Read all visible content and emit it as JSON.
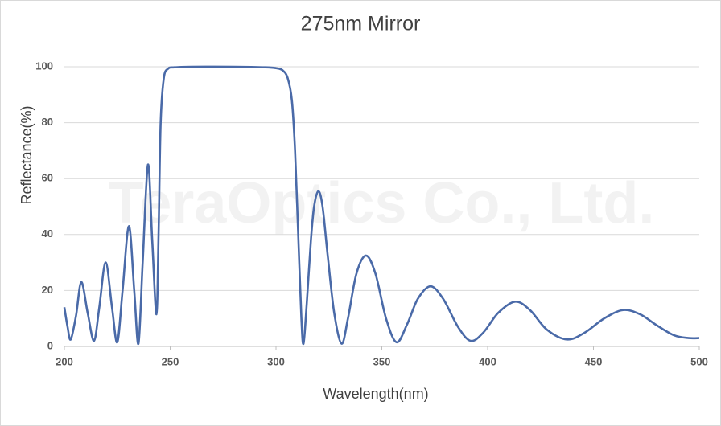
{
  "chart_data": {
    "type": "line",
    "title": "275nm Mirror",
    "watermark": "TeraOptics Co., Ltd.",
    "x_label": "Wavelength(nm)",
    "y_label": "Reflectance(%)",
    "xlim": [
      200,
      500
    ],
    "ylim": [
      0,
      100
    ],
    "xticks": [
      200,
      250,
      300,
      350,
      400,
      450,
      500
    ],
    "yticks": [
      0,
      20,
      40,
      60,
      80,
      100
    ],
    "grid": true,
    "series": [
      {
        "name": "Reflectance",
        "color": "#4a6aa8",
        "x": [
          200,
          201.5,
          203,
          205.5,
          208,
          211,
          214,
          216.5,
          219.5,
          222.5,
          225,
          227.5,
          230.5,
          233,
          235,
          237,
          239.5,
          241.5,
          243.5,
          244.5,
          245.5,
          247,
          249,
          252,
          260,
          280,
          295,
          300,
          303,
          305.5,
          307.5,
          309,
          310.5,
          312,
          313,
          314.5,
          316.5,
          318,
          320,
          322,
          324.5,
          327.5,
          331,
          334,
          338,
          342.5,
          347,
          352,
          357,
          362,
          367,
          373,
          379,
          386,
          392,
          398,
          405,
          413,
          420,
          428,
          437.5,
          446,
          455,
          464,
          472,
          480,
          488,
          495,
          500
        ],
        "values": [
          14,
          7,
          2.5,
          11,
          23,
          12,
          2,
          14,
          30,
          14,
          1.5,
          20,
          43,
          20,
          1,
          30,
          65,
          38,
          11.5,
          40,
          80,
          96,
          99.3,
          99.8,
          100,
          100,
          99.8,
          99.5,
          98.8,
          96,
          88,
          70,
          40,
          10,
          1,
          15,
          38,
          50,
          55.5,
          50,
          32,
          12,
          1,
          10,
          26,
          32.5,
          26,
          10,
          1.5,
          8,
          17,
          21.5,
          17,
          7,
          2,
          5,
          12,
          16,
          13,
          6,
          2.5,
          5,
          10,
          13,
          11.5,
          7.5,
          4,
          3,
          3
        ]
      }
    ]
  }
}
